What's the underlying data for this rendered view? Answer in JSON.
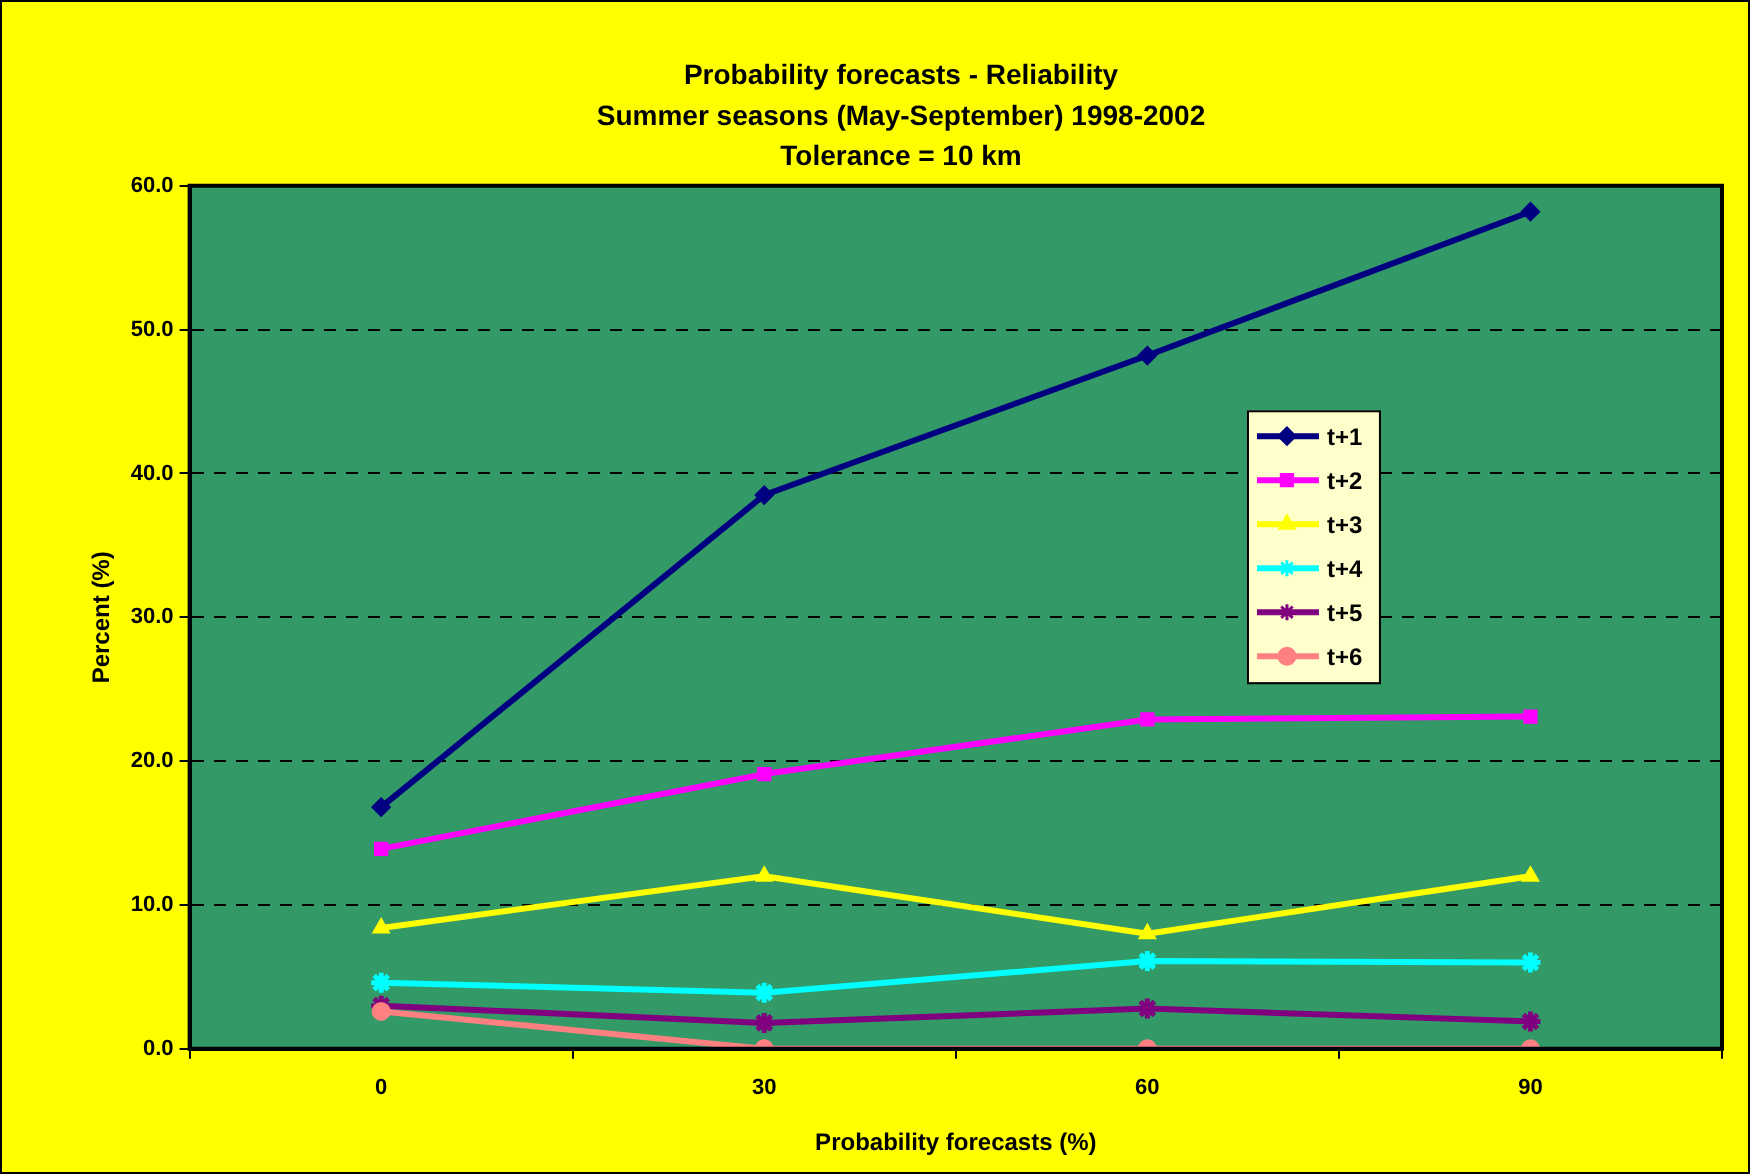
{
  "chart_data": {
    "type": "line",
    "title": "Probability forecasts - Reliability\nSummer seasons (May-September) 1998-2002\nTolerance = 10 km",
    "xlabel": "Probability forecasts (%)",
    "ylabel": "Percent (%)",
    "categories": [
      "0",
      "30",
      "60",
      "90"
    ],
    "ylim": [
      0,
      60
    ],
    "yticks": [
      {
        "value": 0,
        "label": "0.0"
      },
      {
        "value": 10,
        "label": "10.0"
      },
      {
        "value": 20,
        "label": "20.0"
      },
      {
        "value": 30,
        "label": "30.0"
      },
      {
        "value": 40,
        "label": "40.0"
      },
      {
        "value": 50,
        "label": "50.0"
      },
      {
        "value": 60,
        "label": "60.0"
      }
    ],
    "grid": "y",
    "legend": "right",
    "line_style": "solid",
    "series": [
      {
        "name": "t+1",
        "color": "#000080",
        "marker": "diamond",
        "values": [
          16.8,
          38.5,
          48.2,
          58.2
        ]
      },
      {
        "name": "t+2",
        "color": "#ff00ff",
        "marker": "square",
        "values": [
          13.9,
          19.1,
          22.9,
          23.1
        ]
      },
      {
        "name": "t+3",
        "color": "#ffff00",
        "marker": "triangle",
        "values": [
          8.4,
          12.0,
          8.0,
          12.0
        ]
      },
      {
        "name": "t+4",
        "color": "#00ffff",
        "marker": "cross",
        "values": [
          4.6,
          3.9,
          6.1,
          6.0
        ]
      },
      {
        "name": "t+5",
        "color": "#800080",
        "marker": "cross",
        "values": [
          3.0,
          1.8,
          2.8,
          1.9
        ]
      },
      {
        "name": "t+6",
        "color": "#ff8080",
        "marker": "circle",
        "values": [
          2.6,
          0,
          0,
          0
        ]
      }
    ]
  }
}
